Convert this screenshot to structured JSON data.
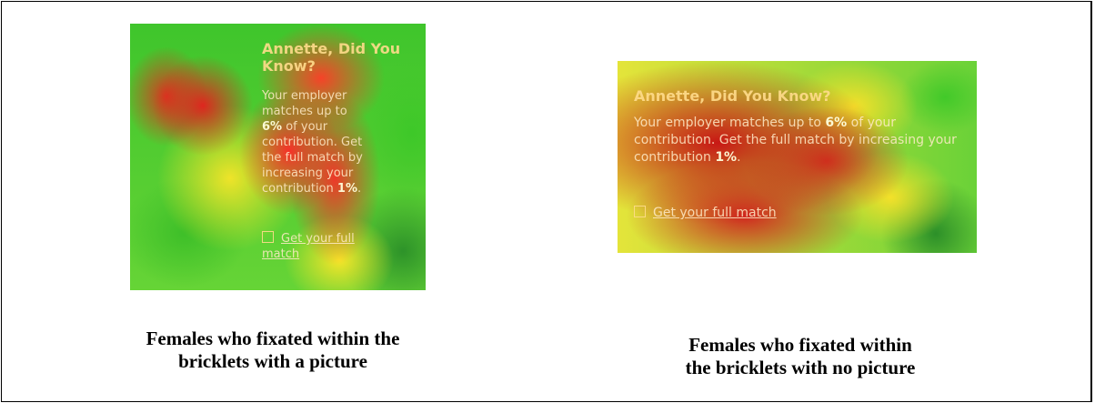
{
  "panels": [
    {
      "ad": {
        "title": "Annette, Did You Know?",
        "body_pre": "Your employer matches up to ",
        "body_pct": "6%",
        "body_mid": " of your contribution. Get the full match by increasing your contribution ",
        "body_pct2": "1%",
        "body_end": ".",
        "link": "Get your full match"
      },
      "caption_line1": "Females who fixated within the",
      "caption_line2": "bricklets with a picture"
    },
    {
      "ad": {
        "title": "Annette, Did You Know?",
        "body_pre": "Your employer matches up to ",
        "body_pct": "6%",
        "body_mid": " of your contribution. Get the full match by increasing your contribution ",
        "body_pct2": "1%",
        "body_end": ".",
        "link": "Get your full match"
      },
      "caption_line1": "Females who fixated within",
      "caption_line2": "the bricklets with no picture"
    }
  ],
  "colors": {
    "heat_red": "#d21e1e",
    "heat_yellow": "#ffe028",
    "heat_green": "#3cbe28",
    "border": "#000000"
  }
}
